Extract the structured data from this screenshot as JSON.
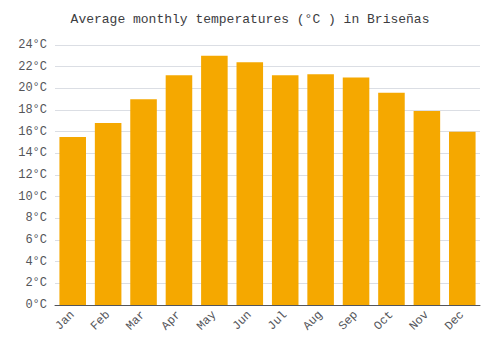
{
  "chart_data": {
    "type": "bar",
    "title": "Average monthly temperatures (°C ) in Briseñas",
    "categories": [
      "Jan",
      "Feb",
      "Mar",
      "Apr",
      "May",
      "Jun",
      "Jul",
      "Aug",
      "Sep",
      "Oct",
      "Nov",
      "Dec"
    ],
    "values": [
      15.5,
      16.8,
      19.0,
      21.2,
      23.0,
      22.4,
      21.2,
      21.3,
      21.0,
      19.6,
      17.9,
      16.0
    ],
    "color": "#F5A800",
    "ylim": [
      0,
      24
    ],
    "yticks": [
      {
        "value": 0,
        "label": "0°C"
      },
      {
        "value": 2,
        "label": "2°C"
      },
      {
        "value": 4,
        "label": "4°C"
      },
      {
        "value": 6,
        "label": "6°C"
      },
      {
        "value": 8,
        "label": "8°C"
      },
      {
        "value": 10,
        "label": "10°C"
      },
      {
        "value": 12,
        "label": "12°C"
      },
      {
        "value": 14,
        "label": "14°C"
      },
      {
        "value": 16,
        "label": "16°C"
      },
      {
        "value": 18,
        "label": "18°C"
      },
      {
        "value": 20,
        "label": "20°C"
      },
      {
        "value": 22,
        "label": "22°C"
      },
      {
        "value": 24,
        "label": "24°C"
      }
    ],
    "grid": true
  }
}
